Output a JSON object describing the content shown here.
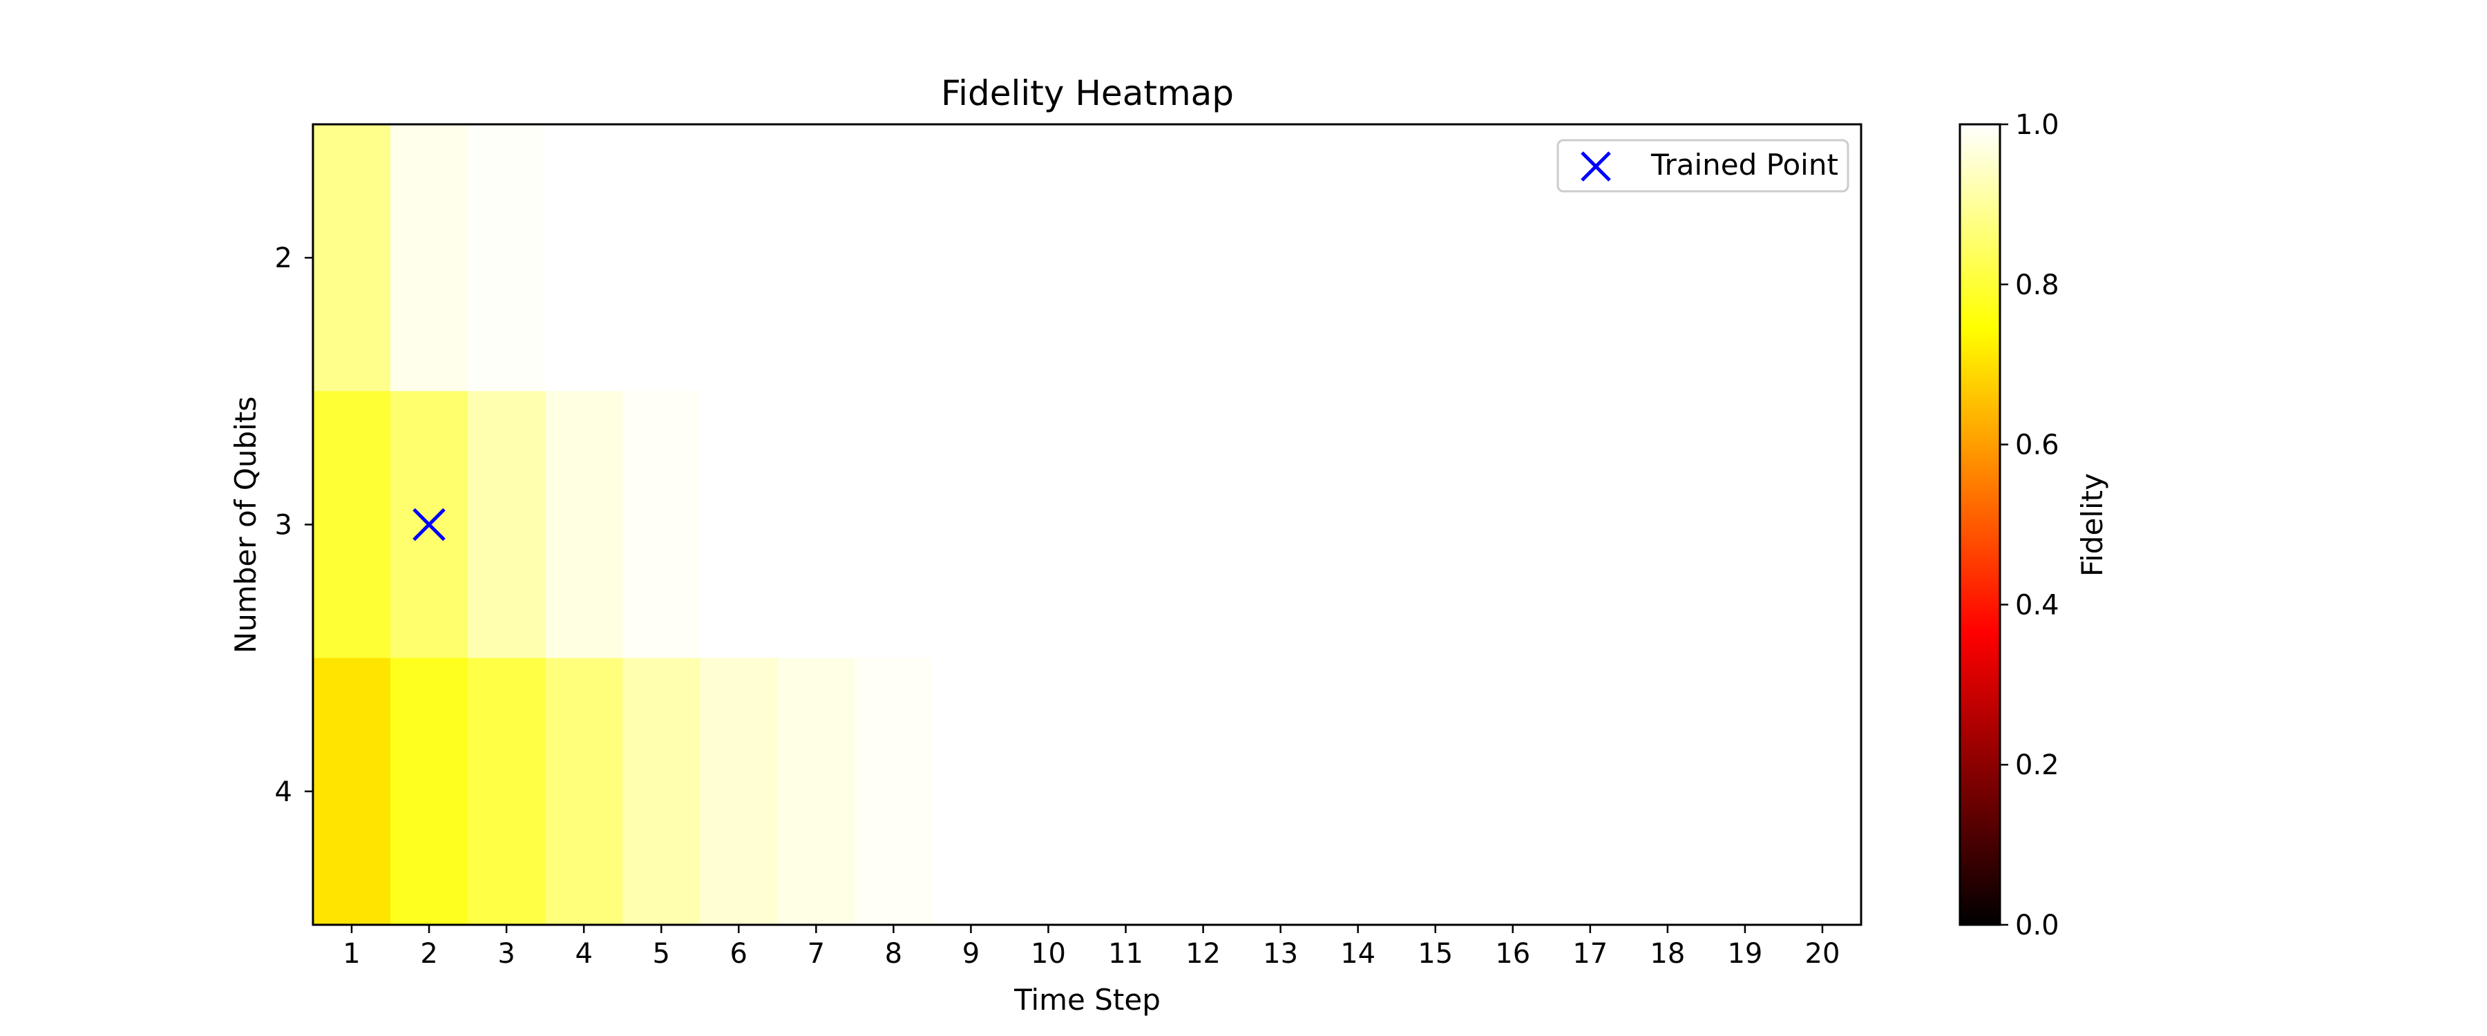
{
  "chart_data": {
    "type": "heatmap",
    "title": "Fidelity Heatmap",
    "xlabel": "Time Step",
    "ylabel": "Number of Qubits",
    "x": [
      1,
      2,
      3,
      4,
      5,
      6,
      7,
      8,
      9,
      10,
      11,
      12,
      13,
      14,
      15,
      16,
      17,
      18,
      19,
      20
    ],
    "y": [
      2,
      3,
      4
    ],
    "values": [
      [
        0.885,
        0.98,
        0.995,
        1.0,
        1.0,
        1.0,
        1.0,
        1.0,
        1.0,
        1.0,
        1.0,
        1.0,
        1.0,
        1.0,
        1.0,
        1.0,
        1.0,
        1.0,
        1.0,
        1.0
      ],
      [
        0.8,
        0.855,
        0.92,
        0.97,
        0.99,
        1.0,
        1.0,
        1.0,
        1.0,
        1.0,
        1.0,
        1.0,
        1.0,
        1.0,
        1.0,
        1.0,
        1.0,
        1.0,
        1.0,
        1.0
      ],
      [
        0.705,
        0.775,
        0.815,
        0.87,
        0.92,
        0.955,
        0.975,
        0.99,
        1.0,
        1.0,
        1.0,
        1.0,
        1.0,
        1.0,
        1.0,
        1.0,
        1.0,
        1.0,
        1.0,
        1.0
      ]
    ],
    "colormap": "hot",
    "colorbar": {
      "label": "Fidelity",
      "range": [
        0.0,
        1.0
      ],
      "ticks": [
        "0.0",
        "0.2",
        "0.4",
        "0.6",
        "0.8",
        "1.0"
      ]
    },
    "marker": {
      "label": "Trained Point",
      "x": 2,
      "y": 3,
      "symbol": "x",
      "color": "#0000ff"
    },
    "legend_position": "top-right",
    "grid": false
  }
}
